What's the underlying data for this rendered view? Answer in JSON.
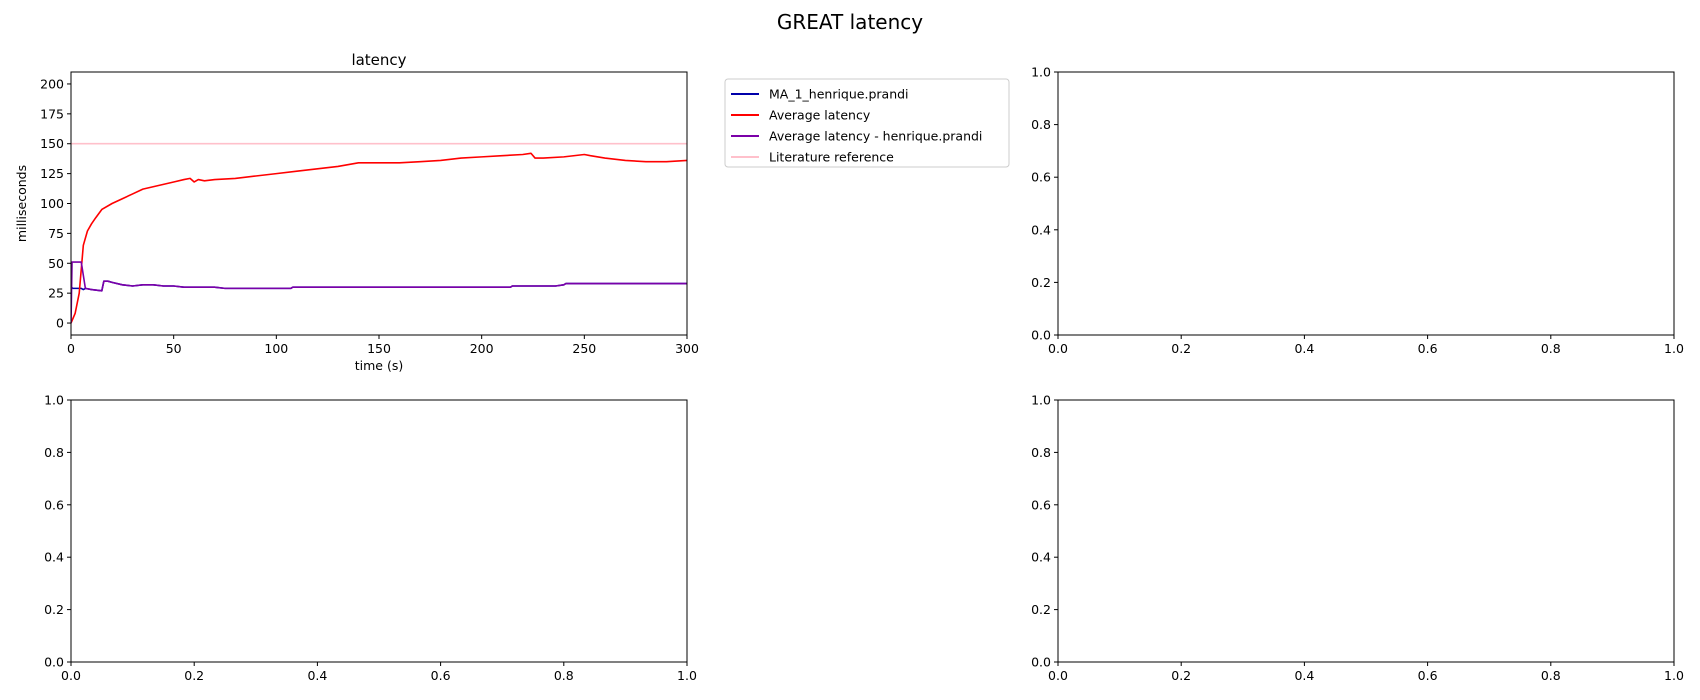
{
  "suptitle": "GREAT latency",
  "chart_data": [
    {
      "type": "line",
      "title": "latency",
      "xlabel": "time (s)",
      "ylabel": "milliseconds",
      "xlim": [
        0,
        300
      ],
      "ylim": [
        -10,
        210
      ],
      "xticks": [
        0,
        50,
        100,
        150,
        200,
        250,
        300
      ],
      "yticks": [
        0,
        25,
        50,
        75,
        100,
        125,
        150,
        175,
        200
      ],
      "legend_position": "outside-right",
      "series": [
        {
          "name": "MA_1_henrique.prandi",
          "color": "#0000aa",
          "x": [
            0,
            1,
            5,
            6,
            7,
            10,
            15,
            16,
            18,
            20,
            25,
            30,
            35,
            40,
            45,
            50,
            55,
            70,
            75,
            80,
            100,
            107,
            108,
            150,
            200,
            214,
            215,
            236,
            240,
            241,
            260,
            300
          ],
          "y": [
            30,
            29,
            29,
            28,
            29,
            28,
            27,
            35,
            35,
            34,
            32,
            31,
            32,
            32,
            31,
            31,
            30,
            30,
            29,
            29,
            29,
            29,
            30,
            30,
            30,
            30,
            31,
            31,
            32,
            33,
            33,
            33
          ]
        },
        {
          "name": "Average latency",
          "color": "#ff0000",
          "x": [
            0,
            2,
            4,
            5,
            6,
            8,
            10,
            12,
            15,
            20,
            25,
            30,
            35,
            40,
            45,
            50,
            55,
            58,
            60,
            62,
            65,
            70,
            80,
            90,
            100,
            110,
            120,
            130,
            140,
            150,
            160,
            170,
            180,
            190,
            200,
            210,
            220,
            224,
            226,
            230,
            240,
            250,
            253,
            260,
            270,
            280,
            290,
            300
          ],
          "y": [
            0,
            8,
            25,
            45,
            65,
            77,
            83,
            88,
            95,
            100,
            104,
            108,
            112,
            114,
            116,
            118,
            120,
            121,
            118,
            120,
            119,
            120,
            121,
            123,
            125,
            127,
            129,
            131,
            134,
            134,
            134,
            135,
            136,
            138,
            139,
            140,
            141,
            142,
            138,
            138,
            139,
            141,
            140,
            138,
            136,
            135,
            135,
            136
          ]
        },
        {
          "name": "Average latency - henrique.prandi",
          "color": "#7b00a8",
          "x": [
            0,
            0.5,
            1,
            5,
            6,
            7,
            10,
            15,
            16,
            18,
            20,
            25,
            30,
            35,
            40,
            45,
            50,
            55,
            70,
            75,
            80,
            100,
            107,
            108,
            150,
            200,
            214,
            215,
            236,
            240,
            241,
            260,
            300
          ],
          "y": [
            0,
            51,
            51,
            51,
            40,
            29,
            28,
            27,
            35,
            35,
            34,
            32,
            31,
            32,
            32,
            31,
            31,
            30,
            30,
            29,
            29,
            29,
            29,
            30,
            30,
            30,
            30,
            31,
            31,
            32,
            33,
            33,
            33
          ]
        },
        {
          "name": "Literature reference",
          "color": "#ffc0cb",
          "x": [
            0,
            300
          ],
          "y": [
            150,
            150
          ]
        }
      ]
    },
    {
      "type": "line",
      "title": "",
      "xlim": [
        0,
        1
      ],
      "ylim": [
        0,
        1
      ],
      "xticks": [
        "0.0",
        "0.2",
        "0.4",
        "0.6",
        "0.8",
        "1.0"
      ],
      "yticks": [
        "0.0",
        "0.2",
        "0.4",
        "0.6",
        "0.8",
        "1.0"
      ],
      "series": []
    },
    {
      "type": "line",
      "title": "",
      "xlim": [
        0,
        1
      ],
      "ylim": [
        0,
        1
      ],
      "xticks": [
        "0.0",
        "0.2",
        "0.4",
        "0.6",
        "0.8",
        "1.0"
      ],
      "yticks": [
        "0.0",
        "0.2",
        "0.4",
        "0.6",
        "0.8",
        "1.0"
      ],
      "series": []
    },
    {
      "type": "line",
      "title": "",
      "xlim": [
        0,
        1
      ],
      "ylim": [
        0,
        1
      ],
      "xticks": [
        "0.0",
        "0.2",
        "0.4",
        "0.6",
        "0.8",
        "1.0"
      ],
      "yticks": [
        "0.0",
        "0.2",
        "0.4",
        "0.6",
        "0.8",
        "1.0"
      ],
      "series": []
    }
  ]
}
